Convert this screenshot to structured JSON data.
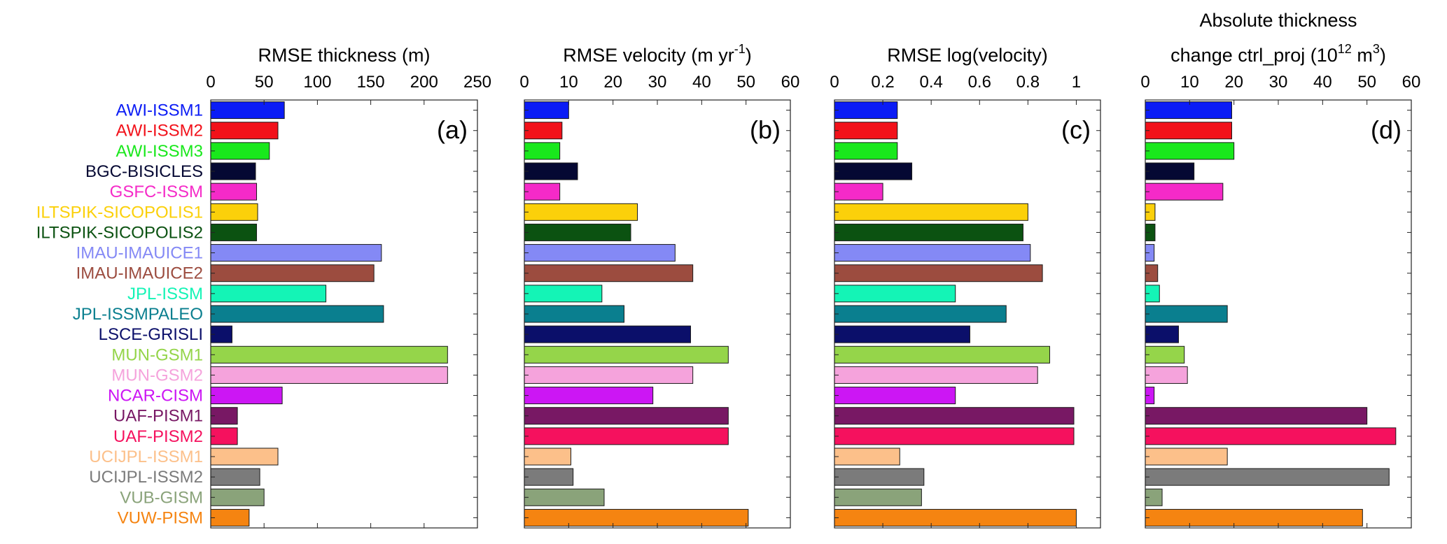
{
  "models": [
    {
      "name": "AWI-ISSM1",
      "color": "#0b1cf5"
    },
    {
      "name": "AWI-ISSM2",
      "color": "#f2111a"
    },
    {
      "name": "AWI-ISSM3",
      "color": "#19e81c"
    },
    {
      "name": "BGC-BISICLES",
      "color": "#050833"
    },
    {
      "name": "GSFC-ISSM",
      "color": "#f52ac8"
    },
    {
      "name": "ILTSPIK-SICOPOLIS1",
      "color": "#fbd00a"
    },
    {
      "name": "ILTSPIK-SICOPOLIS2",
      "color": "#0b5211"
    },
    {
      "name": "IMAU-IMAUICE1",
      "color": "#8489f5"
    },
    {
      "name": "IMAU-IMAUICE2",
      "color": "#9c4c3f"
    },
    {
      "name": "JPL-ISSM",
      "color": "#14f4b6"
    },
    {
      "name": "JPL-ISSMPALEO",
      "color": "#0a7f8f"
    },
    {
      "name": "LSCE-GRISLI",
      "color": "#0b0f6a"
    },
    {
      "name": "MUN-GSM1",
      "color": "#95d54a"
    },
    {
      "name": "MUN-GSM2",
      "color": "#f5a3dc"
    },
    {
      "name": "NCAR-CISM",
      "color": "#cc16f4"
    },
    {
      "name": "UAF-PISM1",
      "color": "#781864"
    },
    {
      "name": "UAF-PISM2",
      "color": "#f5115e"
    },
    {
      "name": "UCIJPL-ISSM1",
      "color": "#fcc08a"
    },
    {
      "name": "UCIJPL-ISSM2",
      "color": "#7b7b7b"
    },
    {
      "name": "VUB-GISM",
      "color": "#8aa37a"
    },
    {
      "name": "VUW-PISM",
      "color": "#f58411"
    }
  ],
  "chart_data": [
    {
      "type": "bar",
      "orientation": "horizontal",
      "panel": "(a)",
      "title": "RMSE thickness (m)",
      "xlim": [
        0,
        250
      ],
      "xticks": [
        "0",
        "50",
        "100",
        "150",
        "200",
        "250"
      ],
      "xtick_values": [
        0,
        50,
        100,
        150,
        200,
        250
      ],
      "values": [
        69,
        63,
        55,
        42,
        43,
        44,
        43,
        160,
        153,
        108,
        162,
        20,
        222,
        222,
        67,
        25,
        25,
        63,
        46,
        50,
        36
      ]
    },
    {
      "type": "bar",
      "orientation": "horizontal",
      "panel": "(b)",
      "title": "RMSE velocity (m yr",
      "title_sup": "-1",
      "title_end": ")",
      "xlim": [
        0,
        60
      ],
      "xticks": [
        "0",
        "10",
        "20",
        "30",
        "40",
        "50",
        "60"
      ],
      "xtick_values": [
        0,
        10,
        20,
        30,
        40,
        50,
        60
      ],
      "values": [
        10,
        8.5,
        8,
        12,
        8,
        25.5,
        24,
        34,
        38,
        17.5,
        22.5,
        37.5,
        46,
        38,
        29,
        46,
        46,
        10.5,
        11,
        18,
        50.5
      ]
    },
    {
      "type": "bar",
      "orientation": "horizontal",
      "panel": "(c)",
      "title": "RMSE log(velocity)",
      "xlim": [
        0,
        1.1
      ],
      "xticks": [
        "0",
        "0.2",
        "0.4",
        "0.6",
        "0.8",
        "1"
      ],
      "xtick_values": [
        0,
        0.2,
        0.4,
        0.6,
        0.8,
        1
      ],
      "values": [
        0.26,
        0.26,
        0.26,
        0.32,
        0.2,
        0.8,
        0.78,
        0.81,
        0.86,
        0.5,
        0.71,
        0.56,
        0.89,
        0.84,
        0.5,
        0.99,
        0.99,
        0.27,
        0.37,
        0.36,
        1.0
      ]
    },
    {
      "type": "bar",
      "orientation": "horizontal",
      "panel": "(d)",
      "title_line1": "Absolute thickness",
      "title_line2": "change ctrl_proj (10",
      "title_sup": "12",
      "title_mid": " m",
      "title_sup2": "3",
      "title_end": ")",
      "xlim": [
        0,
        60
      ],
      "xticks": [
        "0",
        "10",
        "20",
        "30",
        "40",
        "50",
        "60"
      ],
      "xtick_values": [
        0,
        10,
        20,
        30,
        40,
        50,
        60
      ],
      "values": [
        19.5,
        19.5,
        20,
        11,
        17.5,
        2.2,
        2.2,
        2,
        2.8,
        3.2,
        18.5,
        7.5,
        8.8,
        9.5,
        2,
        50,
        56.5,
        18.5,
        55,
        3.8,
        49
      ]
    }
  ]
}
